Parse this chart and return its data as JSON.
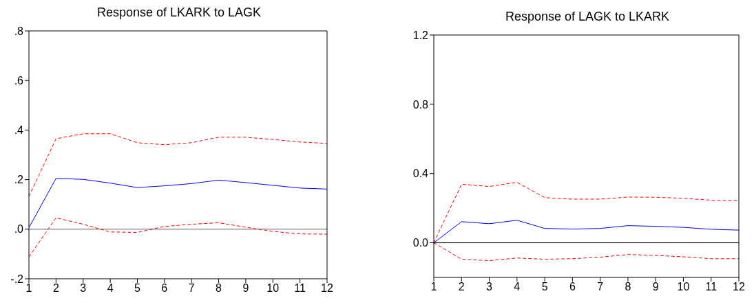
{
  "chart_data": [
    {
      "type": "line",
      "title": "Response of LKARK to LAGK",
      "x": [
        1,
        2,
        3,
        4,
        5,
        6,
        7,
        8,
        9,
        10,
        11,
        12
      ],
      "xlim": [
        1,
        12
      ],
      "xticks": [
        1,
        2,
        3,
        4,
        5,
        6,
        7,
        8,
        9,
        10,
        11,
        12
      ],
      "ylim": [
        -0.2,
        0.8
      ],
      "yticks": [
        {
          "value": -0.2,
          "label": "-.2"
        },
        {
          "value": 0,
          "label": ".0"
        },
        {
          "value": 0.2,
          "label": ".2"
        },
        {
          "value": 0.4,
          "label": ".4"
        },
        {
          "value": 0.6,
          "label": ".6"
        },
        {
          "value": 0.8,
          "label": ".8"
        }
      ],
      "ref_lines": [
        {
          "axis": "y",
          "value": 0,
          "color": "#606060"
        }
      ],
      "series": [
        {
          "color": "#ff0000",
          "line_style": "dashed",
          "values": [
            0.132,
            0.365,
            0.385,
            0.385,
            0.349,
            0.341,
            0.349,
            0.371,
            0.371,
            0.362,
            0.352,
            0.346
          ]
        },
        {
          "color": "#0000ff",
          "line_style": "solid",
          "values": [
            0.006,
            0.205,
            0.201,
            0.186,
            0.168,
            0.175,
            0.184,
            0.198,
            0.188,
            0.177,
            0.166,
            0.162
          ]
        },
        {
          "color": "#ff0000",
          "line_style": "dashed",
          "values": [
            -0.112,
            0.046,
            0.02,
            -0.011,
            -0.013,
            0.011,
            0.02,
            0.026,
            0.008,
            -0.009,
            -0.019,
            -0.02
          ]
        }
      ]
    },
    {
      "type": "line",
      "title": "Response of LAGK to LKARK",
      "x": [
        1,
        2,
        3,
        4,
        5,
        6,
        7,
        8,
        9,
        10,
        11,
        12
      ],
      "xlim": [
        1,
        12
      ],
      "xticks": [
        1,
        2,
        3,
        4,
        5,
        6,
        7,
        8,
        9,
        10,
        11,
        12
      ],
      "ylim": [
        -0.2,
        1.2
      ],
      "yticks": [
        {
          "value": 0,
          "label": "0.0"
        },
        {
          "value": 0.4,
          "label": "0.4"
        },
        {
          "value": 0.8,
          "label": "0.8"
        },
        {
          "value": 1.2,
          "label": "1.2"
        }
      ],
      "ref_lines": [
        {
          "axis": "y",
          "value": 0,
          "color": "#000000"
        }
      ],
      "series": [
        {
          "color": "#ff0000",
          "line_style": "dashed",
          "values": [
            0,
            0.338,
            0.325,
            0.349,
            0.261,
            0.252,
            0.252,
            0.264,
            0.263,
            0.257,
            0.246,
            0.242
          ]
        },
        {
          "color": "#0000ff",
          "line_style": "solid",
          "values": [
            0,
            0.122,
            0.11,
            0.13,
            0.083,
            0.079,
            0.083,
            0.099,
            0.095,
            0.089,
            0.078,
            0.073
          ]
        },
        {
          "color": "#ff0000",
          "line_style": "dashed",
          "values": [
            0,
            -0.095,
            -0.103,
            -0.088,
            -0.095,
            -0.092,
            -0.083,
            -0.068,
            -0.073,
            -0.081,
            -0.092,
            -0.092
          ]
        }
      ]
    }
  ]
}
